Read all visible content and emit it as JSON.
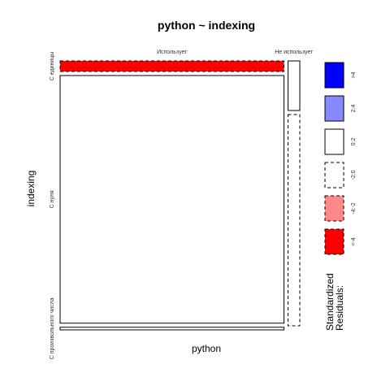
{
  "chart_data": {
    "type": "mosaic",
    "title": "python ~ indexing",
    "xlabel": "python",
    "ylabel": "indexing",
    "x_categories": [
      "Использует",
      "Не использует"
    ],
    "y_categories": [
      "С единицы",
      "С нуля",
      "С произвольного числа"
    ],
    "cells": [
      {
        "x": "Использует",
        "y": "С единицы",
        "proportion_width": 0.95,
        "proportion_height": 0.04,
        "residual_class": "<-4",
        "border": "dashed"
      },
      {
        "x": "Использует",
        "y": "С нуля",
        "proportion_width": 0.95,
        "proportion_height": 0.94,
        "residual_class": "0:2",
        "border": "solid"
      },
      {
        "x": "Использует",
        "y": "С произвольного числа",
        "proportion_width": 0.95,
        "proportion_height": 0.01,
        "residual_class": "0:2",
        "border": "solid"
      },
      {
        "x": "Не использует",
        "y": "С единицы",
        "proportion_width": 0.05,
        "proportion_height": 0.19,
        "residual_class": "0:2",
        "border": "solid"
      },
      {
        "x": "Не использует",
        "y": "С нуля",
        "proportion_width": 0.05,
        "proportion_height": 0.81,
        "residual_class": "-2:0",
        "border": "dashed"
      },
      {
        "x": "Не использует",
        "y": "С произвольного числа",
        "proportion_width": 0.05,
        "proportion_height": 0.0,
        "residual_class": "0:2",
        "border": "none"
      }
    ],
    "legend": {
      "title_lines": [
        "Standardized",
        "Residuals:"
      ],
      "entries": [
        {
          "label": ">4",
          "color": "#0000ff",
          "border": "solid"
        },
        {
          "label": "2:4",
          "color": "#8888ff",
          "border": "solid"
        },
        {
          "label": "0:2",
          "color": "#ffffff",
          "border": "solid"
        },
        {
          "label": "-2:0",
          "color": "#ffffff",
          "border": "dashed"
        },
        {
          "label": "-4:-2",
          "color": "#ff8888",
          "border": "dashed"
        },
        {
          "label": "<-4",
          "color": "#ff0000",
          "border": "dashed"
        }
      ]
    }
  }
}
